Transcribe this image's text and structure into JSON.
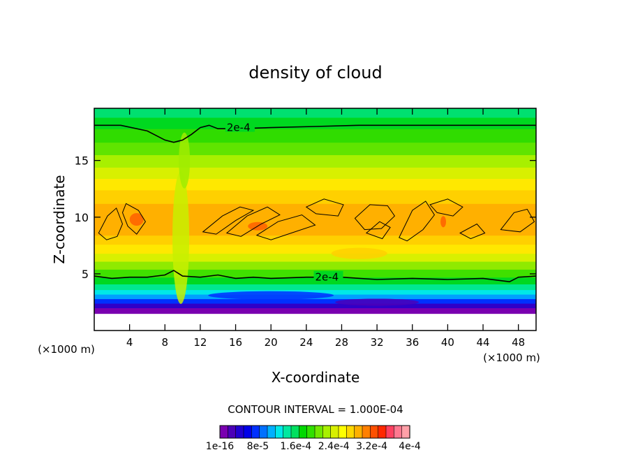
{
  "chart_data": {
    "type": "heatmap",
    "title": "density of cloud",
    "xlabel": "X-coordinate",
    "ylabel": "Z-coordinate",
    "x_unit": "(×1000 m)",
    "x_unit_right": "(×1000 m)",
    "xlim": [
      0,
      50
    ],
    "ylim": [
      0,
      19.6
    ],
    "x_ticks": [
      4,
      8,
      12,
      16,
      20,
      24,
      28,
      32,
      36,
      40,
      44,
      48
    ],
    "y_ticks": [
      5,
      10,
      15
    ],
    "contour_interval_text": "CONTOUR INTERVAL = 1.000E-04",
    "contour_labels": [
      {
        "text": "2e-4",
        "x": 15.0,
        "z": 17.9
      },
      {
        "text": "2e-4",
        "x": 25.0,
        "z": 4.7
      }
    ],
    "colorbar": {
      "colors": [
        "#7a00b0",
        "#4b00b8",
        "#2000d0",
        "#0000e8",
        "#0030ff",
        "#0070ff",
        "#00b0ff",
        "#00e8e8",
        "#00e8a0",
        "#00e060",
        "#00d800",
        "#30e000",
        "#70e800",
        "#a8f000",
        "#d8f000",
        "#ffff00",
        "#ffd800",
        "#ffb000",
        "#ff8000",
        "#ff5000",
        "#ff2800",
        "#ff4060",
        "#ff7890",
        "#ffa0a8"
      ],
      "tick_labels": [
        "1e-16",
        "8e-5",
        "1.6e-4",
        "2.4e-4",
        "3.2e-4",
        "4e-4"
      ]
    },
    "layers": [
      {
        "zmin": 0.0,
        "zmax": 1.5,
        "color": "#ffffff"
      },
      {
        "zmin": 1.5,
        "zmax": 2.0,
        "color": "#7a00b0"
      },
      {
        "zmin": 2.0,
        "zmax": 2.4,
        "color": "#3000c8"
      },
      {
        "zmin": 2.4,
        "zmax": 2.8,
        "color": "#0030ff"
      },
      {
        "zmin": 2.8,
        "zmax": 3.2,
        "color": "#00a0ff"
      },
      {
        "zmin": 3.2,
        "zmax": 3.6,
        "color": "#00e8e8"
      },
      {
        "zmin": 3.6,
        "zmax": 4.1,
        "color": "#00e890"
      },
      {
        "zmin": 4.1,
        "zmax": 4.7,
        "color": "#00d820"
      },
      {
        "zmin": 4.7,
        "zmax": 5.4,
        "color": "#40e000"
      },
      {
        "zmin": 5.4,
        "zmax": 6.1,
        "color": "#90ea00"
      },
      {
        "zmin": 6.1,
        "zmax": 6.8,
        "color": "#d8f000"
      },
      {
        "zmin": 6.8,
        "zmax": 7.6,
        "color": "#ffe800"
      },
      {
        "zmin": 7.6,
        "zmax": 8.4,
        "color": "#ffd000"
      },
      {
        "zmin": 8.4,
        "zmax": 11.2,
        "color": "#ffb000"
      },
      {
        "zmin": 11.2,
        "zmax": 12.4,
        "color": "#ffd000"
      },
      {
        "zmin": 12.4,
        "zmax": 13.4,
        "color": "#ffe800"
      },
      {
        "zmin": 13.4,
        "zmax": 14.4,
        "color": "#d8f000"
      },
      {
        "zmin": 14.4,
        "zmax": 15.5,
        "color": "#a8f000"
      },
      {
        "zmin": 15.5,
        "zmax": 16.6,
        "color": "#60e400"
      },
      {
        "zmin": 16.6,
        "zmax": 17.8,
        "color": "#30dc00"
      },
      {
        "zmin": 17.8,
        "zmax": 18.8,
        "color": "#00d820"
      },
      {
        "zmin": 18.8,
        "zmax": 19.6,
        "color": "#00e070"
      }
    ],
    "contour_top": [
      [
        0,
        18.1
      ],
      [
        3,
        18.1
      ],
      [
        6,
        17.6
      ],
      [
        8,
        16.8
      ],
      [
        9,
        16.6
      ],
      [
        10,
        16.8
      ],
      [
        11,
        17.3
      ],
      [
        12,
        17.9
      ],
      [
        13,
        18.1
      ],
      [
        14,
        17.8
      ],
      [
        16,
        17.8
      ],
      [
        20,
        17.9
      ],
      [
        25,
        18.0
      ],
      [
        30,
        18.1
      ],
      [
        40,
        18.1
      ],
      [
        50,
        18.1
      ]
    ],
    "contour_low": [
      [
        0,
        4.8
      ],
      [
        2,
        4.6
      ],
      [
        4,
        4.7
      ],
      [
        6,
        4.7
      ],
      [
        8,
        4.9
      ],
      [
        9,
        5.3
      ],
      [
        10,
        4.8
      ],
      [
        12,
        4.7
      ],
      [
        14,
        4.9
      ],
      [
        16,
        4.6
      ],
      [
        18,
        4.7
      ],
      [
        20,
        4.6
      ],
      [
        24,
        4.7
      ],
      [
        28,
        4.7
      ],
      [
        32,
        4.5
      ],
      [
        36,
        4.6
      ],
      [
        40,
        4.5
      ],
      [
        44,
        4.6
      ],
      [
        47,
        4.3
      ],
      [
        48,
        4.7
      ],
      [
        50,
        4.8
      ]
    ],
    "contour_cloud": [
      [
        [
          0.5,
          8.6
        ],
        [
          1.5,
          10.1
        ],
        [
          2.5,
          10.8
        ],
        [
          3.2,
          9.4
        ],
        [
          2.6,
          8.3
        ],
        [
          1.4,
          8.0
        ]
      ],
      [
        [
          3.6,
          11.2
        ],
        [
          5.0,
          10.6
        ],
        [
          5.8,
          9.6
        ],
        [
          4.8,
          8.5
        ],
        [
          3.8,
          9.2
        ],
        [
          3.2,
          10.4
        ]
      ],
      [
        [
          12.3,
          8.7
        ],
        [
          14.5,
          10.1
        ],
        [
          16.5,
          10.9
        ],
        [
          18.0,
          10.6
        ],
        [
          16.0,
          9.7
        ],
        [
          13.8,
          8.5
        ]
      ],
      [
        [
          15.0,
          8.6
        ],
        [
          17.3,
          10.1
        ],
        [
          19.6,
          10.9
        ],
        [
          21.0,
          10.2
        ],
        [
          18.9,
          9.4
        ],
        [
          16.6,
          8.3
        ]
      ],
      [
        [
          18.4,
          8.4
        ],
        [
          20.8,
          9.6
        ],
        [
          23.5,
          10.2
        ],
        [
          25.0,
          9.3
        ],
        [
          22.3,
          8.6
        ],
        [
          20.0,
          8.0
        ]
      ],
      [
        [
          24.0,
          10.9
        ],
        [
          26.0,
          11.6
        ],
        [
          28.2,
          11.1
        ],
        [
          27.6,
          10.1
        ],
        [
          25.1,
          10.3
        ]
      ],
      [
        [
          29.5,
          9.9
        ],
        [
          31.2,
          11.1
        ],
        [
          33.2,
          11.0
        ],
        [
          34.0,
          10.1
        ],
        [
          32.5,
          9.0
        ],
        [
          30.6,
          8.9
        ]
      ],
      [
        [
          30.8,
          8.6
        ],
        [
          32.3,
          9.6
        ],
        [
          33.5,
          9.1
        ],
        [
          32.6,
          8.1
        ]
      ],
      [
        [
          34.5,
          8.2
        ],
        [
          36.0,
          10.6
        ],
        [
          37.5,
          11.4
        ],
        [
          38.5,
          10.2
        ],
        [
          37.2,
          8.9
        ],
        [
          35.4,
          7.9
        ]
      ],
      [
        [
          38.0,
          11.1
        ],
        [
          40.0,
          11.6
        ],
        [
          41.7,
          10.9
        ],
        [
          40.6,
          10.1
        ],
        [
          38.8,
          10.4
        ]
      ],
      [
        [
          41.4,
          8.6
        ],
        [
          43.3,
          9.4
        ],
        [
          44.2,
          8.6
        ],
        [
          42.6,
          8.1
        ]
      ],
      [
        [
          46.0,
          8.9
        ],
        [
          47.5,
          10.4
        ],
        [
          49.0,
          10.7
        ],
        [
          49.8,
          9.6
        ],
        [
          48.2,
          8.7
        ]
      ]
    ]
  }
}
